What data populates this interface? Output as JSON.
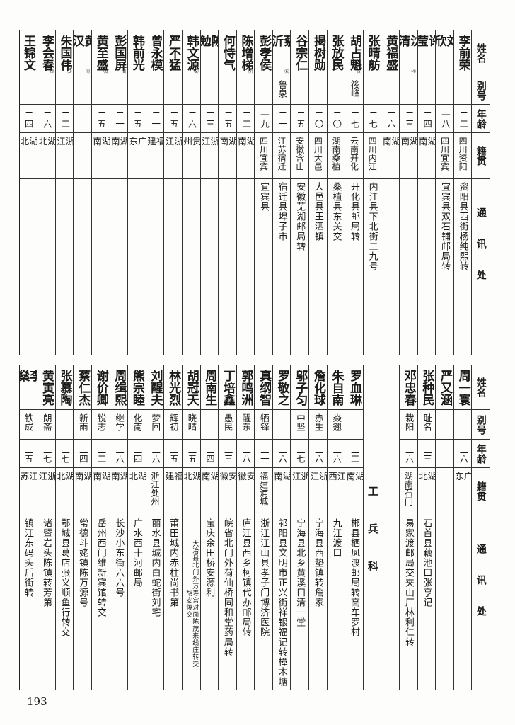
{
  "headers": [
    "姓名",
    "别号",
    "年龄",
    "籍贯",
    "通讯处"
  ],
  "top_table": [
    {
      "name": "李前荣",
      "alias": "",
      "age": "二二",
      "native": "四川资阳",
      "address": "资阳县西街杨纯熙转"
    },
    {
      "name": "刘欣",
      "alias": "",
      "age": "一八",
      "native": "四川宜宾",
      "address": "宜宾县双石铺邮局转"
    },
    {
      "name": "许莹",
      "alias": "",
      "age": "二四",
      "native": "湖南",
      "address": ""
    },
    {
      "name": "沈清",
      "alias": "",
      "age": "二三",
      "native": "湖南",
      "address": "",
      "note": "⑷"
    },
    {
      "name": "黄福盛",
      "alias": "",
      "age": "二六",
      "native": "湖南",
      "address": ""
    },
    {
      "name": "张晴舫",
      "alias": "",
      "age": "二七",
      "native": "四川内江",
      "address": "内江县下北街二九号"
    },
    {
      "name": "胡占魁",
      "alias": "筱峰",
      "age": "二七",
      "native": "云南开化",
      "address": "开化县邮局转",
      "note": "⑸"
    },
    {
      "name": "张放民",
      "alias": "",
      "age": "二〇",
      "native": "湖南桑植",
      "address": "桑植县东关交"
    },
    {
      "name": "揭树勋",
      "alias": "",
      "age": "二〇",
      "native": "四川大邑",
      "address": "大邑县王泗镇"
    },
    {
      "name": "谷宗仁",
      "alias": "",
      "age": "二五",
      "native": "安徽含山",
      "address": "安徽芜湖邮局转"
    },
    {
      "name": "蔡沂",
      "alias": "鲁泉",
      "age": "二一",
      "native": "江苏宿迁",
      "address": "宿迁县埠子市",
      "note": "⑹"
    },
    {
      "name": "彭孝侯",
      "alias": "",
      "age": "一九",
      "native": "四川宜宾",
      "address": "宜宾县"
    },
    {
      "name": "陈增梯",
      "alias": "",
      "age": "二二",
      "native": "湖南",
      "address": "",
      "note": "⑺"
    },
    {
      "name": "何恃气",
      "alias": "",
      "age": "二五",
      "native": "湖南",
      "address": ""
    },
    {
      "name": "陈勉",
      "alias": "",
      "age": "二三",
      "native": "浙江",
      "address": ""
    },
    {
      "name": "韩文源",
      "alias": "",
      "age": "二六",
      "native": "贵州",
      "address": "",
      "note": "⑻"
    },
    {
      "name": "严不猛",
      "alias": "",
      "age": "二五",
      "native": "浙江",
      "address": ""
    },
    {
      "name": "曾永模",
      "alias": "",
      "age": "二一",
      "native": "福建",
      "address": ""
    },
    {
      "name": "韩前光",
      "alias": "",
      "age": "二五",
      "native": "广东",
      "address": ""
    },
    {
      "name": "彭国屏",
      "alias": "",
      "age": "二一",
      "native": "湖南",
      "address": "",
      "note": "⑼"
    },
    {
      "name": "黄至盛",
      "alias": "",
      "age": "二五",
      "native": "湖南",
      "address": "",
      "note": "⑽"
    },
    {
      "name": "黄汉",
      "alias": "",
      "age": "",
      "native": "",
      "address": "",
      "note": "⑾"
    },
    {
      "name": "朱国伟",
      "alias": "",
      "age": "二二",
      "native": "浙江",
      "address": "",
      "note": "⑿"
    },
    {
      "name": "李会春",
      "alias": "",
      "age": "二六",
      "native": "湖北",
      "address": "",
      "note": "⒀"
    },
    {
      "name": "王锦文",
      "alias": "",
      "age": "二四",
      "native": "湖北",
      "address": ""
    }
  ],
  "bottom_section_label": "工兵科",
  "bottom_table": [
    {
      "name": "周一寰",
      "alias": "",
      "age": "二六",
      "native": "广东",
      "address": ""
    },
    {
      "name": "严又涵",
      "alias": "",
      "age": "",
      "native": "",
      "address": ""
    },
    {
      "name": "张种民",
      "alias": "耻名",
      "age": "二三",
      "native": "湖北",
      "address": "石首县藕池口张亨记"
    },
    {
      "name": "邓忠春",
      "alias": "栽阳",
      "age": "二六",
      "native": "湖南石门",
      "address": "易家渡邮局交夹山厂林利仁转"
    },
    {
      "empty": true
    },
    {
      "section": true
    },
    {
      "name": "罗血琳",
      "alias": "",
      "age": "二二",
      "native": "湖南",
      "address": "郴县栖凤渡邮局转高车罗村"
    },
    {
      "name": "朱自南",
      "alias": "焱翘",
      "age": "二六",
      "native": "江西",
      "address": "九江渡口"
    },
    {
      "name": "詹化球",
      "alias": "赤生",
      "age": "二六",
      "native": "浙江",
      "address": "宁海县西垫镇转詹家"
    },
    {
      "name": "邬子匀",
      "alias": "中坚",
      "age": "二七",
      "native": "浙江",
      "address": "宁海县北乡黄溪口清一堂"
    },
    {
      "name": "罗敬之",
      "alias": "",
      "age": "二六",
      "native": "湖南",
      "address": "祁阳县文明市正兴街祥银福记转樟木塘"
    },
    {
      "name": "真纲智",
      "alias": "牺铎",
      "age": "二一",
      "native": "福建浦城",
      "address": "浙江江山县孝子门博济医院"
    },
    {
      "name": "郭鸣洲",
      "alias": "醒东",
      "age": "二八",
      "native": "安徽",
      "address": "庐江县西乡柯镇代办邮局转"
    },
    {
      "name": "丁培鑫",
      "alias": "愚民",
      "age": "二三",
      "native": "安徽",
      "address": "皖省北门外荷仙桥同和堂药局转"
    },
    {
      "name": "周南生",
      "alias": "",
      "age": "二四",
      "native": "湖南",
      "address": "宝庆余田桥安源利"
    },
    {
      "name": "胡冠天",
      "alias": "晓晴",
      "age": "二五",
      "native": "湖北",
      "address": "大冶县北门外万寿宫对面陈茂来线庄转交",
      "address2": "胡安俊交"
    },
    {
      "name": "林光烈",
      "alias": "辉初",
      "age": "二五",
      "native": "福建",
      "address": "莆田城内赤柱尚书第"
    },
    {
      "name": "刘醒夫",
      "alias": "梦回",
      "age": "二六",
      "native": "浙江处州",
      "address": "丽水县城内白蛇街刘宅"
    },
    {
      "name": "熊宗睦",
      "alias": "化南",
      "age": "二四",
      "native": "湖北",
      "address": "广水西十河邮局"
    },
    {
      "name": "周缉熙",
      "alias": "继学",
      "age": "二六",
      "native": "湖南",
      "address": "长沙小东街六六号"
    },
    {
      "name": "谢价卿",
      "alias": "锐志",
      "age": "二二",
      "native": "湖南",
      "address": "岳州西门维新宾馆转交"
    },
    {
      "name": "蔡仁杰",
      "alias": "新雨",
      "age": "二四",
      "native": "湖南",
      "address": "常德斗姥镇陈万源号"
    },
    {
      "name": "张慕陶",
      "alias": "",
      "age": "二七",
      "native": "湖北",
      "address": "鄂城县葛店张义顺鱼行转交"
    },
    {
      "name": "黄寅亮",
      "alias": "朗斋",
      "age": "二七",
      "native": "浙江",
      "address": "诸暨岩头陈镇转芳第"
    },
    {
      "name": "李燊",
      "alias": "铁成",
      "age": "二五",
      "native": "江苏",
      "address": "镇江东码头后街转"
    }
  ],
  "page_number": "193"
}
